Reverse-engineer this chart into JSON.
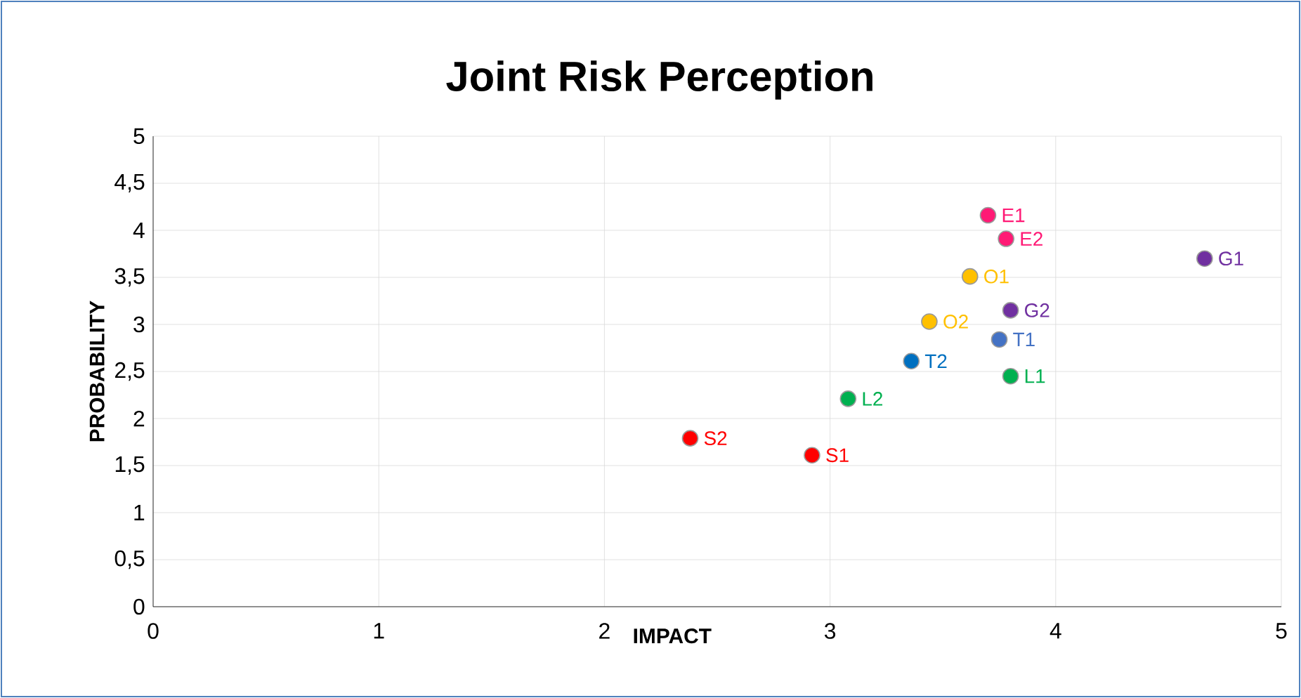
{
  "chart_data": {
    "type": "scatter",
    "title": "Joint Risk Perception",
    "xlabel": "IMPACT",
    "ylabel": "PROBABILITY",
    "xlim": [
      0,
      5
    ],
    "xticks": [
      0,
      1,
      2,
      3,
      4,
      5
    ],
    "ylim": [
      0,
      5
    ],
    "yticks": [
      0,
      {
        "value": 0.5,
        "label": "0,5"
      },
      1,
      {
        "value": 1.5,
        "label": "1,5"
      },
      2,
      {
        "value": 2.5,
        "label": "2,5"
      },
      3,
      {
        "value": 3.5,
        "label": "3,5"
      },
      4,
      {
        "value": 4.5,
        "label": "4,5"
      },
      5
    ],
    "grid": true,
    "series": [
      {
        "name": "E1",
        "color": "#ff1a75",
        "x": [
          3.7
        ],
        "values": [
          4.16
        ]
      },
      {
        "name": "E2",
        "color": "#ff1a75",
        "x": [
          3.78
        ],
        "values": [
          3.91
        ]
      },
      {
        "name": "G1",
        "color": "#7030a0",
        "x": [
          4.66
        ],
        "values": [
          3.7
        ]
      },
      {
        "name": "O1",
        "color": "#ffc000",
        "x": [
          3.62
        ],
        "values": [
          3.51
        ]
      },
      {
        "name": "G2",
        "color": "#7030a0",
        "x": [
          3.8
        ],
        "values": [
          3.15
        ]
      },
      {
        "name": "O2",
        "color": "#ffc000",
        "x": [
          3.44
        ],
        "values": [
          3.03
        ]
      },
      {
        "name": "T1",
        "color": "#4472c4",
        "x": [
          3.75
        ],
        "values": [
          2.84
        ]
      },
      {
        "name": "T2",
        "color": "#0070c0",
        "x": [
          3.36
        ],
        "values": [
          2.61
        ]
      },
      {
        "name": "L1",
        "color": "#00b050",
        "x": [
          3.8
        ],
        "values": [
          2.45
        ]
      },
      {
        "name": "L2",
        "color": "#00b050",
        "x": [
          3.08
        ],
        "values": [
          2.21
        ]
      },
      {
        "name": "S2",
        "color": "#ff0000",
        "x": [
          2.38
        ],
        "values": [
          1.79
        ]
      },
      {
        "name": "S1",
        "color": "#ff0000",
        "x": [
          2.92
        ],
        "values": [
          1.61
        ]
      }
    ]
  }
}
